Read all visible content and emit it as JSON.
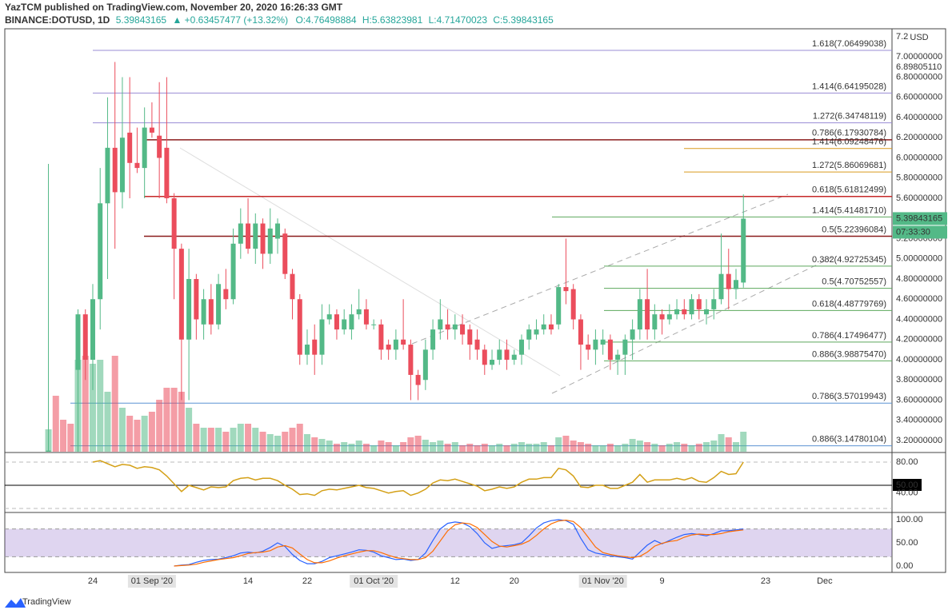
{
  "header": {
    "published": "YazTCM published on TradingView.com, November 20, 2020 16:26:33 GMT",
    "symbol": "BINANCE:DOTUSD, 1D",
    "last": "5.39843165",
    "change": "▲ +0.63457477 (+13.32%)",
    "ohlc": [
      "O:4.76498884",
      "H:5.63823981",
      "L:4.71470023",
      "C:5.39843165"
    ]
  },
  "footer": "TradingView",
  "chart_data": {
    "type": "candlestick",
    "up_color": "#53b987",
    "down_color": "#eb4d5c",
    "unit": "USD",
    "xlim": [
      -5.9,
      114.1
    ],
    "xticks": [
      {
        "value": 6,
        "label": "24"
      },
      {
        "value": 14,
        "label": "01 Sep '20"
      },
      {
        "value": 27,
        "label": "14"
      },
      {
        "value": 35,
        "label": "22"
      },
      {
        "value": 44,
        "label": "01 Oct '20"
      },
      {
        "value": 55,
        "label": "12"
      },
      {
        "value": 63,
        "label": "20"
      },
      {
        "value": 75,
        "label": "01 Nov '20"
      },
      {
        "value": 83,
        "label": "9"
      },
      {
        "value": 97,
        "label": "23"
      },
      {
        "value": 105,
        "label": "Dec"
      }
    ],
    "ylim": [
      3.089,
      7.279
    ],
    "yticks": [
      7.2,
      {
        "value": 7,
        "label": "7.00000000"
      },
      {
        "value": 6.8,
        "label": "6.80000000"
      },
      {
        "value": 6.6,
        "label": "6.60000000"
      },
      {
        "value": 6.4,
        "label": "6.40000000"
      },
      {
        "value": 6.2,
        "label": "6.20000000"
      },
      {
        "value": 6,
        "label": "6.00000000"
      },
      {
        "value": 5.8,
        "label": "5.80000000"
      },
      {
        "value": 5.6,
        "label": "5.60000000"
      },
      {
        "value": 5.2,
        "label": "5.20000000"
      },
      {
        "value": 5,
        "label": "5.00000000"
      },
      {
        "value": 4.8,
        "label": "4.80000000"
      },
      {
        "value": 4.6,
        "label": "4.60000000"
      },
      {
        "value": 4.4,
        "label": "4.40000000"
      },
      {
        "value": 4.2,
        "label": "4.20000000"
      },
      {
        "value": 4,
        "label": "4.00000000"
      },
      {
        "value": 3.8,
        "label": "3.80000000"
      },
      {
        "value": 3.6,
        "label": "3.60000000"
      },
      {
        "value": 3.4,
        "label": "3.40000000"
      },
      {
        "value": 3.2,
        "label": "3.20000000"
      }
    ],
    "price_marker": {
      "value": 6.8980511,
      "label": "6.89805110"
    },
    "last_price": 5.39843165,
    "countdown": "07:33:30",
    "open": [
      3.0,
      null,
      null,
      null,
      3.9,
      4.45,
      4.0,
      4.6,
      5.55,
      6.1,
      5.66,
      6.25,
      5.95,
      5.9,
      6.3,
      6.22,
      6.1,
      5.6,
      5.1,
      4.2,
      4.8,
      4.35,
      4.6,
      4.35,
      4.7,
      4.6,
      5.15,
      5.35,
      5.1,
      5.35,
      5.05,
      5.2,
      5.25,
      4.85,
      4.6,
      4.05,
      4.2,
      4.05,
      4.4,
      4.45,
      4.3,
      4.3,
      4.45,
      4.5,
      4.35,
      4.35,
      4.15,
      4.1,
      4.2,
      4.15,
      3.85,
      3.8,
      4.1,
      4.3,
      4.35,
      4.3,
      4.35,
      4.3,
      4.2,
      4.1,
      3.95,
      4.0,
      4.1,
      4.0,
      4.05,
      4.2,
      4.25,
      4.3,
      4.35,
      4.35,
      4.72,
      4.7,
      4.4,
      4.15,
      4.1,
      4.15,
      4.2,
      4.0,
      4.05,
      4.2,
      4.3,
      4.6,
      4.3,
      4.45,
      4.4,
      4.45,
      4.5,
      4.45,
      4.6,
      4.45,
      4.5,
      4.6,
      4.85,
      4.7,
      4.76498884
    ],
    "high": [
      5.94,
      null,
      null,
      null,
      4.5,
      4.5,
      4.75,
      5.9,
      6.6,
      6.95,
      6.8,
      6.8,
      6.3,
      6.5,
      6.55,
      6.75,
      6.8,
      5.65,
      5.15,
      5.1,
      4.85,
      4.7,
      4.75,
      4.85,
      4.9,
      5.3,
      5.5,
      5.6,
      5.45,
      5.4,
      5.5,
      5.4,
      5.3,
      4.9,
      4.65,
      4.3,
      4.35,
      4.55,
      4.55,
      4.5,
      4.5,
      4.55,
      4.7,
      4.6,
      4.4,
      4.4,
      4.2,
      4.3,
      4.6,
      4.2,
      3.9,
      4.2,
      4.4,
      4.6,
      4.5,
      4.45,
      4.45,
      4.35,
      4.3,
      4.15,
      4.1,
      4.2,
      4.2,
      4.1,
      4.25,
      4.35,
      4.4,
      4.45,
      4.45,
      4.75,
      5.2,
      4.75,
      4.45,
      4.25,
      4.3,
      4.3,
      4.25,
      4.1,
      4.25,
      4.4,
      4.7,
      4.9,
      4.55,
      4.5,
      4.55,
      4.6,
      4.6,
      4.65,
      4.65,
      4.6,
      4.7,
      5.25,
      5.1,
      4.9,
      5.63823981
    ],
    "low": [
      2.9,
      null,
      null,
      null,
      3.0,
      3.8,
      3.7,
      4.3,
      4.8,
      5.1,
      5.5,
      5.6,
      5.85,
      5.6,
      6.2,
      5.6,
      5.55,
      4.6,
      3.6,
      3.6,
      4.2,
      4.2,
      4.25,
      4.3,
      4.5,
      4.55,
      5.0,
      5.05,
      4.95,
      4.9,
      4.95,
      5.05,
      4.8,
      4.4,
      3.95,
      3.95,
      3.85,
      3.95,
      4.35,
      4.2,
      4.25,
      4.2,
      4.4,
      4.3,
      4.3,
      4.0,
      4.0,
      4.0,
      4.1,
      3.6,
      3.6,
      3.7,
      4.0,
      4.2,
      4.2,
      4.2,
      4.15,
      4.0,
      4.0,
      3.85,
      3.9,
      3.95,
      3.9,
      3.95,
      3.95,
      4.1,
      4.2,
      4.25,
      4.25,
      4.3,
      4.55,
      4.3,
      3.9,
      4.0,
      3.95,
      4.05,
      3.9,
      3.85,
      3.85,
      4.0,
      4.2,
      4.2,
      4.2,
      4.25,
      4.35,
      4.4,
      4.4,
      4.4,
      4.4,
      4.35,
      4.4,
      4.55,
      4.5,
      4.6,
      4.71470023
    ],
    "close": [
      3.1,
      null,
      null,
      null,
      4.45,
      4.0,
      4.6,
      5.55,
      6.1,
      5.66,
      6.2,
      5.95,
      5.9,
      6.3,
      6.25,
      6.0,
      5.6,
      5.1,
      4.2,
      4.8,
      4.4,
      4.6,
      4.35,
      4.75,
      4.6,
      5.15,
      5.35,
      5.1,
      5.35,
      5.05,
      5.3,
      5.35,
      4.85,
      4.6,
      4.05,
      4.15,
      4.05,
      4.4,
      4.45,
      4.3,
      4.4,
      4.45,
      4.5,
      4.35,
      4.35,
      4.1,
      4.1,
      4.2,
      4.15,
      3.85,
      3.75,
      4.1,
      4.3,
      4.4,
      4.3,
      4.35,
      4.25,
      4.15,
      4.1,
      3.95,
      4.0,
      4.1,
      4.0,
      4.05,
      4.2,
      4.3,
      4.3,
      4.35,
      4.3,
      4.72,
      4.68,
      4.4,
      4.15,
      4.1,
      4.2,
      4.2,
      4.0,
      4.05,
      4.2,
      4.3,
      4.6,
      4.3,
      4.45,
      4.4,
      4.45,
      4.5,
      4.45,
      4.6,
      4.5,
      4.5,
      4.6,
      4.85,
      4.7,
      4.79,
      5.39843165
    ],
    "volume": [
      28,
      70,
      40,
      35,
      115,
      120,
      110,
      115,
      75,
      120,
      55,
      45,
      40,
      45,
      50,
      65,
      80,
      80,
      75,
      55,
      35,
      30,
      30,
      30,
      25,
      30,
      35,
      35,
      30,
      25,
      22,
      20,
      25,
      30,
      35,
      22,
      18,
      16,
      14,
      10,
      12,
      10,
      14,
      10,
      8,
      14,
      12,
      8,
      12,
      18,
      20,
      15,
      12,
      14,
      10,
      12,
      8,
      10,
      8,
      10,
      8,
      10,
      8,
      10,
      12,
      10,
      10,
      12,
      8,
      18,
      20,
      14,
      12,
      10,
      8,
      8,
      10,
      8,
      10,
      16,
      14,
      12,
      10,
      8,
      10,
      12,
      10,
      8,
      10,
      12,
      14,
      22,
      18,
      12,
      25
    ],
    "levels": [
      {
        "label": "1.618(7.06499038)",
        "value": 7.06499038,
        "color": "#9a8cd4"
      },
      {
        "label": "1.414(6.64195028)",
        "value": 6.64195028,
        "color": "#9a8cd4"
      },
      {
        "label": "1.272(6.34748119)",
        "value": 6.34748119,
        "color": "#9a8cd4"
      },
      {
        "label": "0.786(6.17930784)",
        "value": 6.17930784,
        "color": "#8b1c1c"
      },
      {
        "label": "1.414(6.09248476)",
        "value": 6.09248476,
        "color": "#d99a1e"
      },
      {
        "label": "1.272(5.86069681)",
        "value": 5.86069681,
        "color": "#d99a1e"
      },
      {
        "label": "0.618(5.61812499)",
        "value": 5.61812499,
        "color": "#c62828"
      },
      {
        "label": "1.414(5.41481710)",
        "value": 5.4148171,
        "color": "#5da85d"
      },
      {
        "label": "0.5(5.22396084)",
        "value": 5.22396084,
        "color": "#8b1c1c"
      },
      {
        "label": "0.382(4.92725345)",
        "value": 4.92725345,
        "color": "#5da85d"
      },
      {
        "label": "0.5(4.70752557)",
        "value": 4.70752557,
        "color": "#5da85d"
      },
      {
        "label": "0.618(4.48779769)",
        "value": 4.48779769,
        "color": "#5da85d"
      },
      {
        "label": "0.786(4.17496477)",
        "value": 4.17496477,
        "color": "#5da85d"
      },
      {
        "label": "0.886(3.98875470)",
        "value": 3.9887547,
        "color": "#5da85d"
      },
      {
        "label": "0.786(3.57019943)",
        "value": 3.57019943,
        "color": "#5b93d3"
      },
      {
        "label": "0.886(3.14780104)",
        "value": 3.14780104,
        "color": "#5b93d3"
      }
    ],
    "rsi": {
      "color": "#d4a017",
      "ylim": [
        15.9,
        91.4
      ],
      "yticks": [
        {
          "value": 80,
          "label": "80.00"
        },
        {
          "value": 50,
          "label": "50.00"
        },
        {
          "value": 40,
          "label": "40.00"
        }
      ],
      "values": [
        null,
        null,
        null,
        null,
        null,
        null,
        80,
        82,
        78,
        74,
        77,
        76,
        72,
        74,
        73,
        70,
        62,
        52,
        42,
        50,
        47,
        44,
        48,
        47,
        48,
        56,
        59,
        60,
        57,
        59,
        59,
        56,
        50,
        45,
        38,
        39,
        37,
        43,
        45,
        44,
        46,
        48,
        50,
        47,
        46,
        43,
        40,
        42,
        43,
        37,
        40,
        45,
        53,
        57,
        56,
        58,
        55,
        52,
        49,
        43,
        45,
        48,
        46,
        48,
        54,
        58,
        58,
        60,
        60,
        72,
        70,
        62,
        48,
        47,
        50,
        50,
        46,
        46,
        50,
        54,
        64,
        54,
        57,
        57,
        57,
        59,
        57,
        60,
        55,
        54,
        60,
        68,
        64,
        65,
        80
      ]
    },
    "stoch_rsi": {
      "ylim": [
        -12.1,
        113.8
      ],
      "yticks": [
        {
          "value": 100,
          "label": "100.00"
        },
        {
          "value": 50,
          "label": "50.00"
        },
        {
          "value": 0,
          "label": "0.00"
        }
      ],
      "series": [
        {
          "color": "#2962ff",
          "values": [
            null,
            null,
            null,
            null,
            null,
            null,
            null,
            null,
            null,
            null,
            null,
            null,
            null,
            null,
            null,
            null,
            null,
            0,
            2,
            3,
            8,
            12,
            14,
            15,
            18,
            22,
            28,
            30,
            28,
            32,
            40,
            50,
            42,
            25,
            12,
            5,
            5,
            10,
            18,
            22,
            26,
            30,
            35,
            34,
            30,
            22,
            18,
            14,
            15,
            12,
            14,
            28,
            55,
            80,
            92,
            95,
            93,
            85,
            70,
            50,
            38,
            42,
            44,
            46,
            50,
            65,
            82,
            93,
            98,
            100,
            98,
            90,
            60,
            35,
            28,
            25,
            22,
            20,
            18,
            15,
            30,
            45,
            55,
            48,
            55,
            62,
            68,
            70,
            68,
            65,
            70,
            76,
            76,
            78,
            80
          ]
        },
        {
          "color": "#ff6d00",
          "values": [
            null,
            null,
            null,
            null,
            null,
            null,
            null,
            null,
            null,
            null,
            null,
            null,
            null,
            null,
            null,
            null,
            null,
            0,
            1,
            2,
            4,
            8,
            11,
            14,
            16,
            18,
            22,
            27,
            29,
            30,
            33,
            41,
            44,
            39,
            26,
            14,
            7,
            7,
            11,
            17,
            22,
            26,
            30,
            33,
            33,
            29,
            23,
            18,
            16,
            14,
            14,
            18,
            32,
            54,
            76,
            89,
            93,
            91,
            83,
            68,
            53,
            43,
            41,
            44,
            47,
            54,
            66,
            80,
            91,
            97,
            99,
            96,
            83,
            62,
            41,
            29,
            25,
            22,
            20,
            18,
            21,
            30,
            43,
            49,
            53,
            55,
            62,
            67,
            69,
            68,
            68,
            70,
            74,
            76,
            78
          ]
        }
      ]
    }
  }
}
